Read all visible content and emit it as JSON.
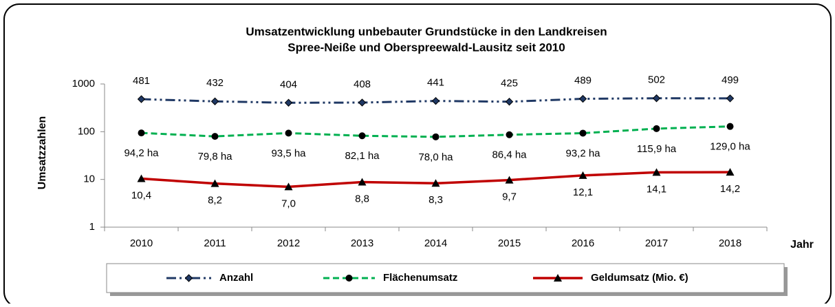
{
  "chart_data": {
    "type": "line",
    "title": [
      "Umsatzentwicklung unbebauter Grundstücke in den Landkreisen",
      "Spree-Neiße und Oberspreewald-Lausitz seit 2010"
    ],
    "x_label": "Jahr",
    "y_label": "Umsatzzahlen",
    "categories": [
      "2010",
      "2011",
      "2012",
      "2013",
      "2014",
      "2015",
      "2016",
      "2017",
      "2018"
    ],
    "log_scale": true,
    "ylim": [
      1,
      1000
    ],
    "yticks": [
      1,
      10,
      100,
      1000
    ],
    "grid": false,
    "legend": "bottom",
    "series": [
      {
        "name": "Anzahl",
        "color": "#1f3864",
        "marker": "diamond",
        "dash": "dashdot",
        "values": [
          481,
          432,
          404,
          408,
          441,
          425,
          489,
          502,
          499
        ]
      },
      {
        "name": "Flächenumsatz",
        "color": "#00b050",
        "marker": "circle",
        "dash": "dashed",
        "values": [
          94.2,
          79.8,
          93.5,
          82.1,
          78.0,
          86.4,
          93.2,
          115.9,
          129.0
        ],
        "value_labels": [
          "94,2 ha",
          "79,8 ha",
          "93,5 ha",
          "82,1 ha",
          "78,0 ha",
          "86,4 ha",
          "93,2 ha",
          "115,9 ha",
          "129,0 ha"
        ]
      },
      {
        "name": "Geldumsatz (Mio. €)",
        "color": "#c00000",
        "marker": "triangle",
        "dash": "solid",
        "values": [
          10.4,
          8.2,
          7.0,
          8.8,
          8.3,
          9.7,
          12.1,
          14.1,
          14.2
        ],
        "value_labels": [
          "10,4",
          "8,2",
          "7,0",
          "8,8",
          "8,3",
          "9,7",
          "12,1",
          "14,1",
          "14,2"
        ]
      }
    ]
  }
}
